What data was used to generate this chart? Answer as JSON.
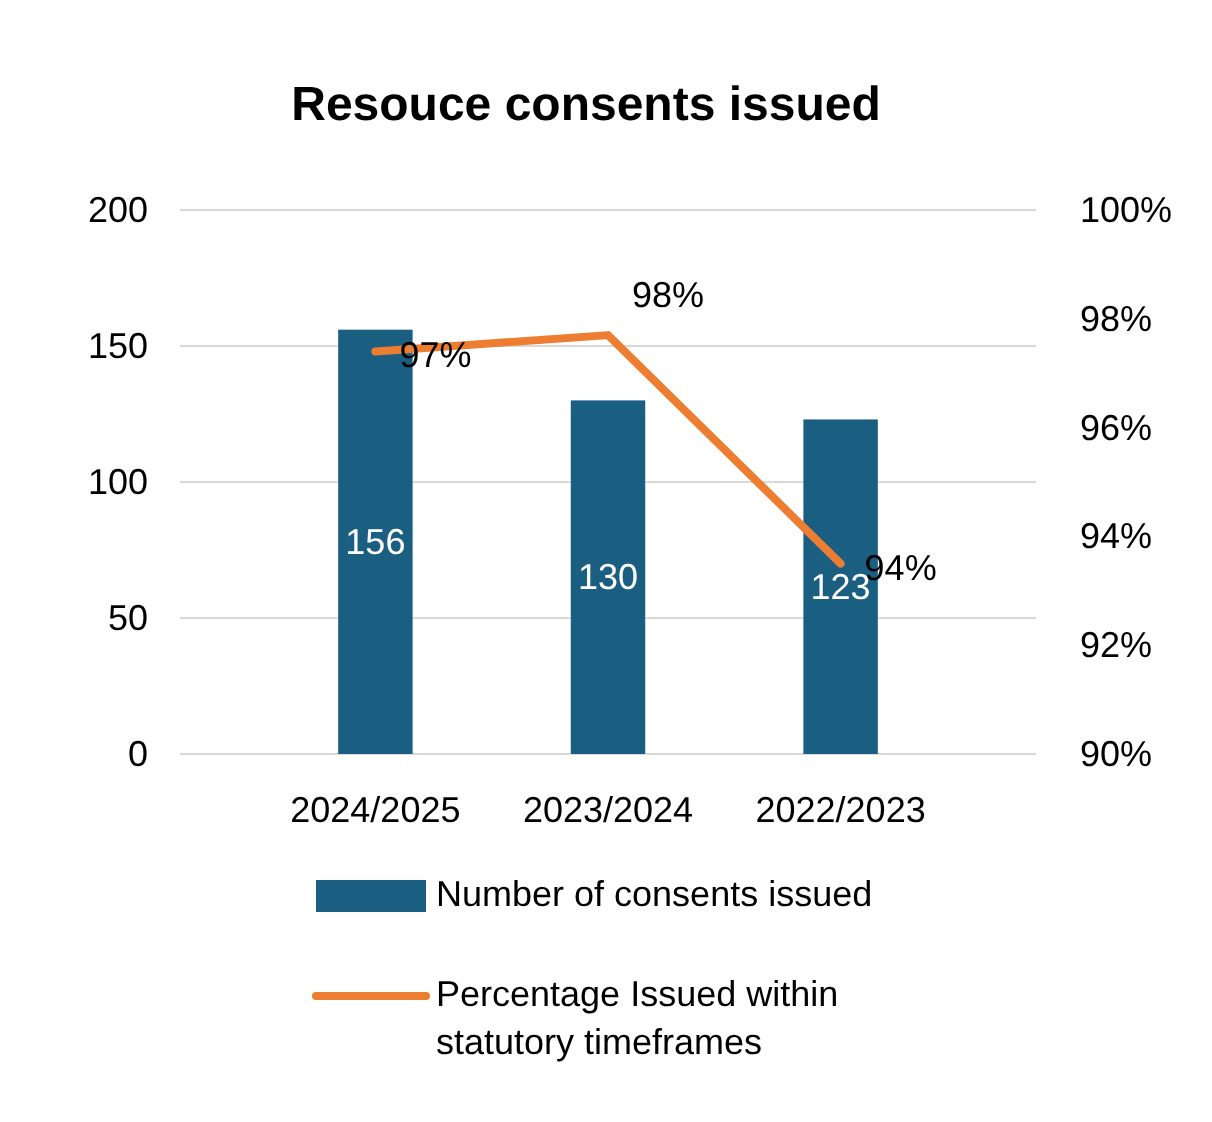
{
  "chart_data": {
    "type": "bar",
    "title": "Resouce consents issued",
    "categories": [
      "2024/2025",
      "2023/2024",
      "2022/2023"
    ],
    "series": [
      {
        "name": "Number of consents issued",
        "color": "#1a5e82",
        "values": [
          156,
          130,
          123
        ],
        "value_labels": [
          "156",
          "130",
          "123"
        ]
      },
      {
        "name": "Percentage Issued within statutory timeframes",
        "type": "line",
        "axis": "y2",
        "color": "#ed7d31",
        "values": [
          97.4,
          97.7,
          93.5
        ],
        "value_labels": [
          "97%",
          "98%",
          "94%"
        ]
      }
    ],
    "ylim": [
      0,
      200
    ],
    "yticks": [
      0,
      50,
      100,
      150,
      200
    ],
    "y2lim": [
      90,
      100
    ],
    "y2ticks": [
      {
        "value": 90,
        "label": "90%"
      },
      {
        "value": 92,
        "label": "92%"
      },
      {
        "value": 94,
        "label": "94%"
      },
      {
        "value": 96,
        "label": "96%"
      },
      {
        "value": 98,
        "label": "98%"
      },
      {
        "value": 100,
        "label": "100%"
      }
    ],
    "grid": "y",
    "legend": "bottom",
    "marker": "none",
    "line_style": "solid"
  }
}
